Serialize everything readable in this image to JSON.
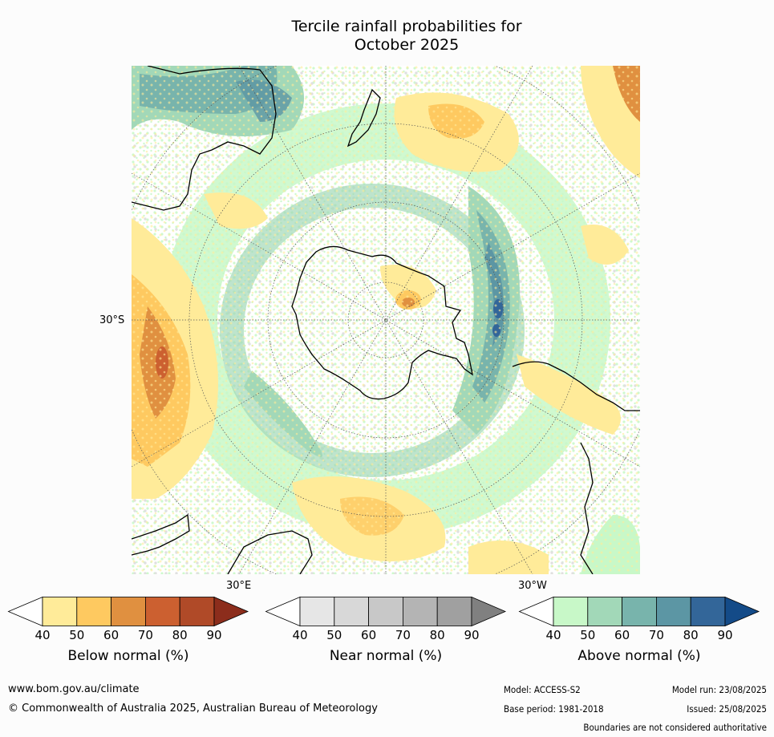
{
  "title_line1": "Tercile rainfall probabilities for",
  "title_line2": "October 2025",
  "map": {
    "lat_label": "30°S",
    "lon_label_left": "30°E",
    "lon_label_right": "30°W"
  },
  "colorbars": [
    {
      "name": "below",
      "label": "Below normal (%)",
      "ticks": [
        "40",
        "50",
        "60",
        "70",
        "80",
        "90"
      ],
      "colors": [
        "#ffffff",
        "#ffeb99",
        "#fec960",
        "#e09040",
        "#cc6030",
        "#b04a28",
        "#8c2d1c"
      ]
    },
    {
      "name": "near",
      "label": "Near normal (%)",
      "ticks": [
        "40",
        "50",
        "60",
        "70",
        "80",
        "90"
      ],
      "colors": [
        "#ffffff",
        "#e6e6e6",
        "#d8d8d8",
        "#c8c8c8",
        "#b4b4b4",
        "#a0a0a0",
        "#808080"
      ]
    },
    {
      "name": "above",
      "label": "Above normal (%)",
      "ticks": [
        "40",
        "50",
        "60",
        "70",
        "80",
        "90"
      ],
      "colors": [
        "#ffffff",
        "#c8f8c8",
        "#a2d8b8",
        "#78b4ac",
        "#5c96a4",
        "#336699",
        "#144b88"
      ]
    }
  ],
  "colors": {
    "below_1": "#ffeb99",
    "below_2": "#fec960",
    "below_3": "#e09040",
    "near_1": "#e6e6e6",
    "above_1": "#c8f8c8",
    "above_2": "#a2d8b8",
    "above_3": "#78b4ac",
    "above_4": "#5c96a4",
    "above_5": "#336699"
  },
  "footer": {
    "website": "www.bom.gov.au/climate",
    "copyright": "© Commonwealth of Australia 2025, Australian Bureau of Meteorology",
    "model": "Model: ACCESS-S2",
    "base_period": "Base period: 1981-2018",
    "model_run": "Model run: 23/08/2025",
    "issued": "Issued: 25/08/2025",
    "disclaimer": "Boundaries are not considered authoritative"
  }
}
